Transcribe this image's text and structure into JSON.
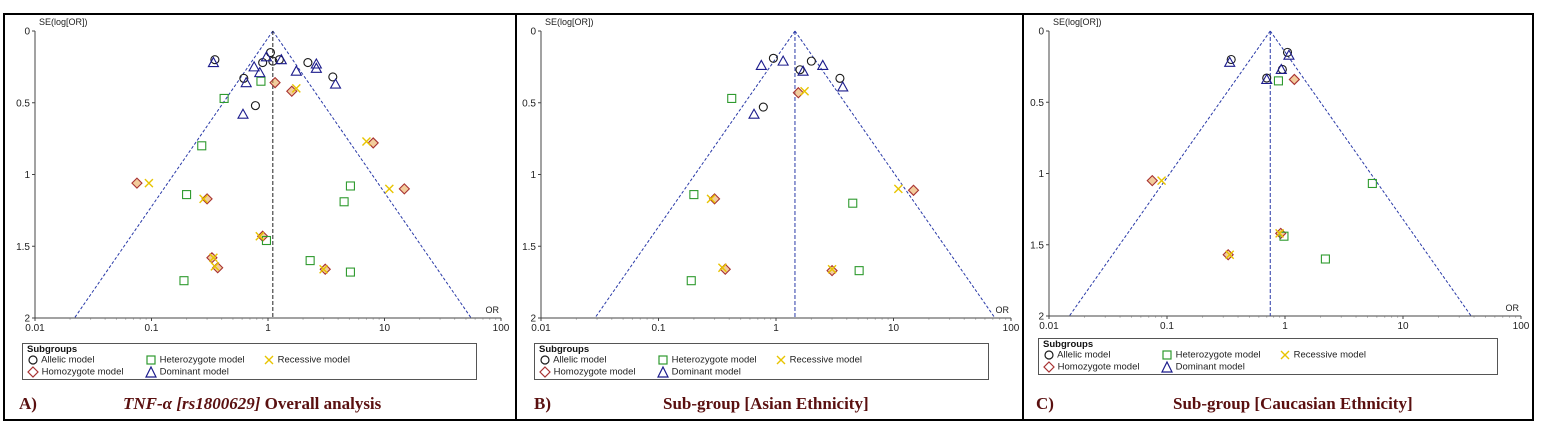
{
  "colors": {
    "allelic": "#1a1a1a",
    "homozygote": "#a83232",
    "homozygote_fill": "#e8a24a",
    "heterozygote": "#2e9a2e",
    "recessive": "#e8c400",
    "dominant": "#1c1c8c",
    "funnel": "#2a3aa8",
    "caption": "#5a1010"
  },
  "legend": {
    "title": "Subgroups",
    "allelic": "Allelic model",
    "heterozygote": "Heterozygote model",
    "recessive": "Recessive model",
    "homozygote": "Homozygote model",
    "dominant": "Dominant model"
  },
  "panels": [
    {
      "letter": "A)",
      "caption_italic": "TNF-α [rs1800629]",
      "caption_rest": " Overall analysis"
    },
    {
      "letter": "B)",
      "caption_italic": "",
      "caption_rest": "Sub-group [Asian Ethnicity]"
    },
    {
      "letter": "C)",
      "caption_italic": "",
      "caption_rest": "Sub-group [Caucasian Ethnicity]"
    }
  ],
  "chart_data": [
    {
      "type": "scatter",
      "subtype": "funnel",
      "ylabel": "SE(log[OR])",
      "xlabel": "OR",
      "x_scale": "log",
      "xlim": [
        0.01,
        100
      ],
      "ylim": [
        0,
        2
      ],
      "y_reversed": true,
      "x_ticks": [
        "0.01",
        "0.1",
        "1",
        "10",
        "100"
      ],
      "y_ticks": [
        "0",
        "0.5",
        "1",
        "1.5",
        "2"
      ],
      "pooled_or": 1.1,
      "series": [
        {
          "name": "Allelic model",
          "marker": "circle",
          "points": [
            [
              0.35,
              0.2
            ],
            [
              0.62,
              0.33
            ],
            [
              0.78,
              0.52
            ],
            [
              0.9,
              0.22
            ],
            [
              1.05,
              0.15
            ],
            [
              1.1,
              0.21
            ],
            [
              1.25,
              0.2
            ],
            [
              2.2,
              0.22
            ],
            [
              3.6,
              0.32
            ]
          ]
        },
        {
          "name": "Homozygote model",
          "marker": "diamond",
          "points": [
            [
              1.15,
              0.36
            ],
            [
              1.6,
              0.42
            ],
            [
              8.0,
              0.78
            ],
            [
              0.075,
              1.06
            ],
            [
              0.3,
              1.17
            ],
            [
              14.8,
              1.1
            ],
            [
              0.9,
              1.43
            ],
            [
              0.33,
              1.58
            ],
            [
              0.37,
              1.65
            ],
            [
              3.1,
              1.66
            ]
          ]
        },
        {
          "name": "Heterozygote model",
          "marker": "square",
          "points": [
            [
              0.42,
              0.47
            ],
            [
              0.87,
              0.35
            ],
            [
              0.27,
              0.8
            ],
            [
              0.2,
              1.14
            ],
            [
              5.1,
              1.08
            ],
            [
              4.5,
              1.19
            ],
            [
              0.97,
              1.46
            ],
            [
              2.3,
              1.6
            ],
            [
              0.19,
              1.74
            ],
            [
              5.1,
              1.68
            ]
          ]
        },
        {
          "name": "Recessive model",
          "marker": "cross",
          "points": [
            [
              1.75,
              0.4
            ],
            [
              7.0,
              0.77
            ],
            [
              0.095,
              1.06
            ],
            [
              0.28,
              1.17
            ],
            [
              11.0,
              1.1
            ],
            [
              0.85,
              1.43
            ],
            [
              0.34,
              1.58
            ],
            [
              0.35,
              1.64
            ],
            [
              3.0,
              1.66
            ]
          ]
        },
        {
          "name": "Dominant model",
          "marker": "triangle",
          "points": [
            [
              0.34,
              0.22
            ],
            [
              0.65,
              0.36
            ],
            [
              0.61,
              0.58
            ],
            [
              0.76,
              0.25
            ],
            [
              0.85,
              0.29
            ],
            [
              0.97,
              0.18
            ],
            [
              1.3,
              0.2
            ],
            [
              1.75,
              0.28
            ],
            [
              2.6,
              0.23
            ],
            [
              2.6,
              0.26
            ],
            [
              3.8,
              0.37
            ]
          ]
        }
      ]
    },
    {
      "type": "scatter",
      "subtype": "funnel",
      "ylabel": "SE(log[OR])",
      "xlabel": "OR",
      "x_scale": "log",
      "xlim": [
        0.01,
        100
      ],
      "ylim": [
        0,
        2
      ],
      "y_reversed": true,
      "x_ticks": [
        "0.01",
        "0.1",
        "1",
        "10",
        "100"
      ],
      "y_ticks": [
        "0",
        "0.5",
        "1",
        "1.5",
        "2"
      ],
      "pooled_or": 1.45,
      "series": [
        {
          "name": "Allelic model",
          "marker": "circle",
          "points": [
            [
              0.78,
              0.53
            ],
            [
              0.95,
              0.19
            ],
            [
              1.6,
              0.27
            ],
            [
              2.0,
              0.21
            ],
            [
              3.5,
              0.33
            ]
          ]
        },
        {
          "name": "Homozygote model",
          "marker": "diamond",
          "points": [
            [
              1.55,
              0.43
            ],
            [
              0.3,
              1.17
            ],
            [
              14.8,
              1.11
            ],
            [
              0.37,
              1.66
            ],
            [
              3.0,
              1.67
            ]
          ]
        },
        {
          "name": "Heterozygote model",
          "marker": "square",
          "points": [
            [
              0.42,
              0.47
            ],
            [
              0.2,
              1.14
            ],
            [
              4.5,
              1.2
            ],
            [
              0.19,
              1.74
            ],
            [
              5.1,
              1.67
            ]
          ]
        },
        {
          "name": "Recessive model",
          "marker": "cross",
          "points": [
            [
              1.75,
              0.42
            ],
            [
              0.28,
              1.17
            ],
            [
              11.0,
              1.1
            ],
            [
              0.35,
              1.65
            ],
            [
              3.0,
              1.66
            ]
          ]
        },
        {
          "name": "Dominant model",
          "marker": "triangle",
          "points": [
            [
              0.65,
              0.58
            ],
            [
              0.75,
              0.24
            ],
            [
              1.15,
              0.21
            ],
            [
              1.7,
              0.28
            ],
            [
              2.5,
              0.24
            ],
            [
              3.7,
              0.39
            ]
          ]
        }
      ]
    },
    {
      "type": "scatter",
      "subtype": "funnel",
      "ylabel": "SE(log[OR])",
      "xlabel": "OR",
      "x_scale": "log",
      "xlim": [
        0.01,
        100
      ],
      "ylim": [
        0,
        2
      ],
      "y_reversed": true,
      "x_ticks": [
        "0.01",
        "0.1",
        "1",
        "10",
        "100"
      ],
      "y_ticks": [
        "0",
        "0.5",
        "1",
        "1.5",
        "2"
      ],
      "pooled_or": 0.75,
      "series": [
        {
          "name": "Allelic model",
          "marker": "circle",
          "points": [
            [
              0.35,
              0.2
            ],
            [
              0.7,
              0.33
            ],
            [
              0.95,
              0.27
            ],
            [
              1.05,
              0.15
            ]
          ]
        },
        {
          "name": "Homozygote model",
          "marker": "diamond",
          "points": [
            [
              1.2,
              0.34
            ],
            [
              0.075,
              1.05
            ],
            [
              0.92,
              1.42
            ],
            [
              0.33,
              1.57
            ]
          ]
        },
        {
          "name": "Heterozygote model",
          "marker": "square",
          "points": [
            [
              0.88,
              0.35
            ],
            [
              5.5,
              1.07
            ],
            [
              0.98,
              1.44
            ],
            [
              2.2,
              1.6
            ]
          ]
        },
        {
          "name": "Recessive model",
          "marker": "cross",
          "points": [
            [
              0.09,
              1.05
            ],
            [
              0.9,
              1.42
            ],
            [
              0.34,
              1.57
            ]
          ]
        },
        {
          "name": "Dominant model",
          "marker": "triangle",
          "points": [
            [
              0.34,
              0.22
            ],
            [
              0.7,
              0.34
            ],
            [
              0.93,
              0.27
            ],
            [
              1.08,
              0.17
            ]
          ]
        }
      ]
    }
  ]
}
